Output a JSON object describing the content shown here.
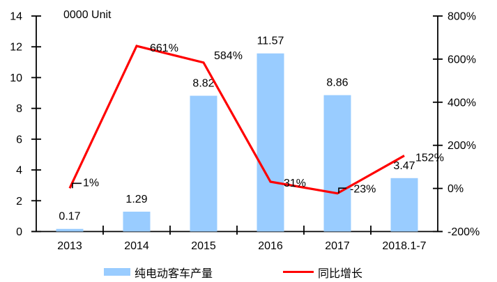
{
  "chart_data": {
    "type": "combo: bar + line",
    "title": "0000 Unit",
    "categories": [
      "2013",
      "2014",
      "2015",
      "2016",
      "2017",
      "2018.1-7"
    ],
    "series": [
      {
        "name": "纯电动客车产量",
        "type": "bar",
        "axis": "left",
        "color": "#99CCFF",
        "values": [
          0.17,
          1.29,
          8.82,
          11.57,
          8.86,
          3.47
        ],
        "data_labels": [
          "0.17",
          "1.29",
          "8.82",
          "11.57",
          "8.86",
          "3.47"
        ]
      },
      {
        "name": "同比增长",
        "type": "line",
        "axis": "right",
        "color": "#FF0000",
        "values_percent": [
          1,
          661,
          584,
          31,
          -23,
          152
        ],
        "data_labels": [
          "1%",
          "661%",
          "584%",
          "31%",
          "-23%",
          "152%"
        ]
      }
    ],
    "left_axis": {
      "min": 0,
      "max": 14,
      "tick_labels": [
        "0",
        "2",
        "4",
        "6",
        "8",
        "10",
        "12",
        "14"
      ]
    },
    "right_axis": {
      "min": -200,
      "max": 800,
      "tick_labels": [
        "-200%",
        "0%",
        "200%",
        "400%",
        "600%",
        "800%"
      ]
    },
    "legend": {
      "position": "bottom",
      "entries": [
        {
          "label": "纯电动客车产量",
          "marker": "bar",
          "color": "#99CCFF"
        },
        {
          "label": "同比增长",
          "marker": "line",
          "color": "#FF0000"
        }
      ]
    },
    "grid": "off",
    "colors": {
      "axis": "#000000",
      "text": "#000000",
      "background": "#FFFFFF"
    }
  }
}
